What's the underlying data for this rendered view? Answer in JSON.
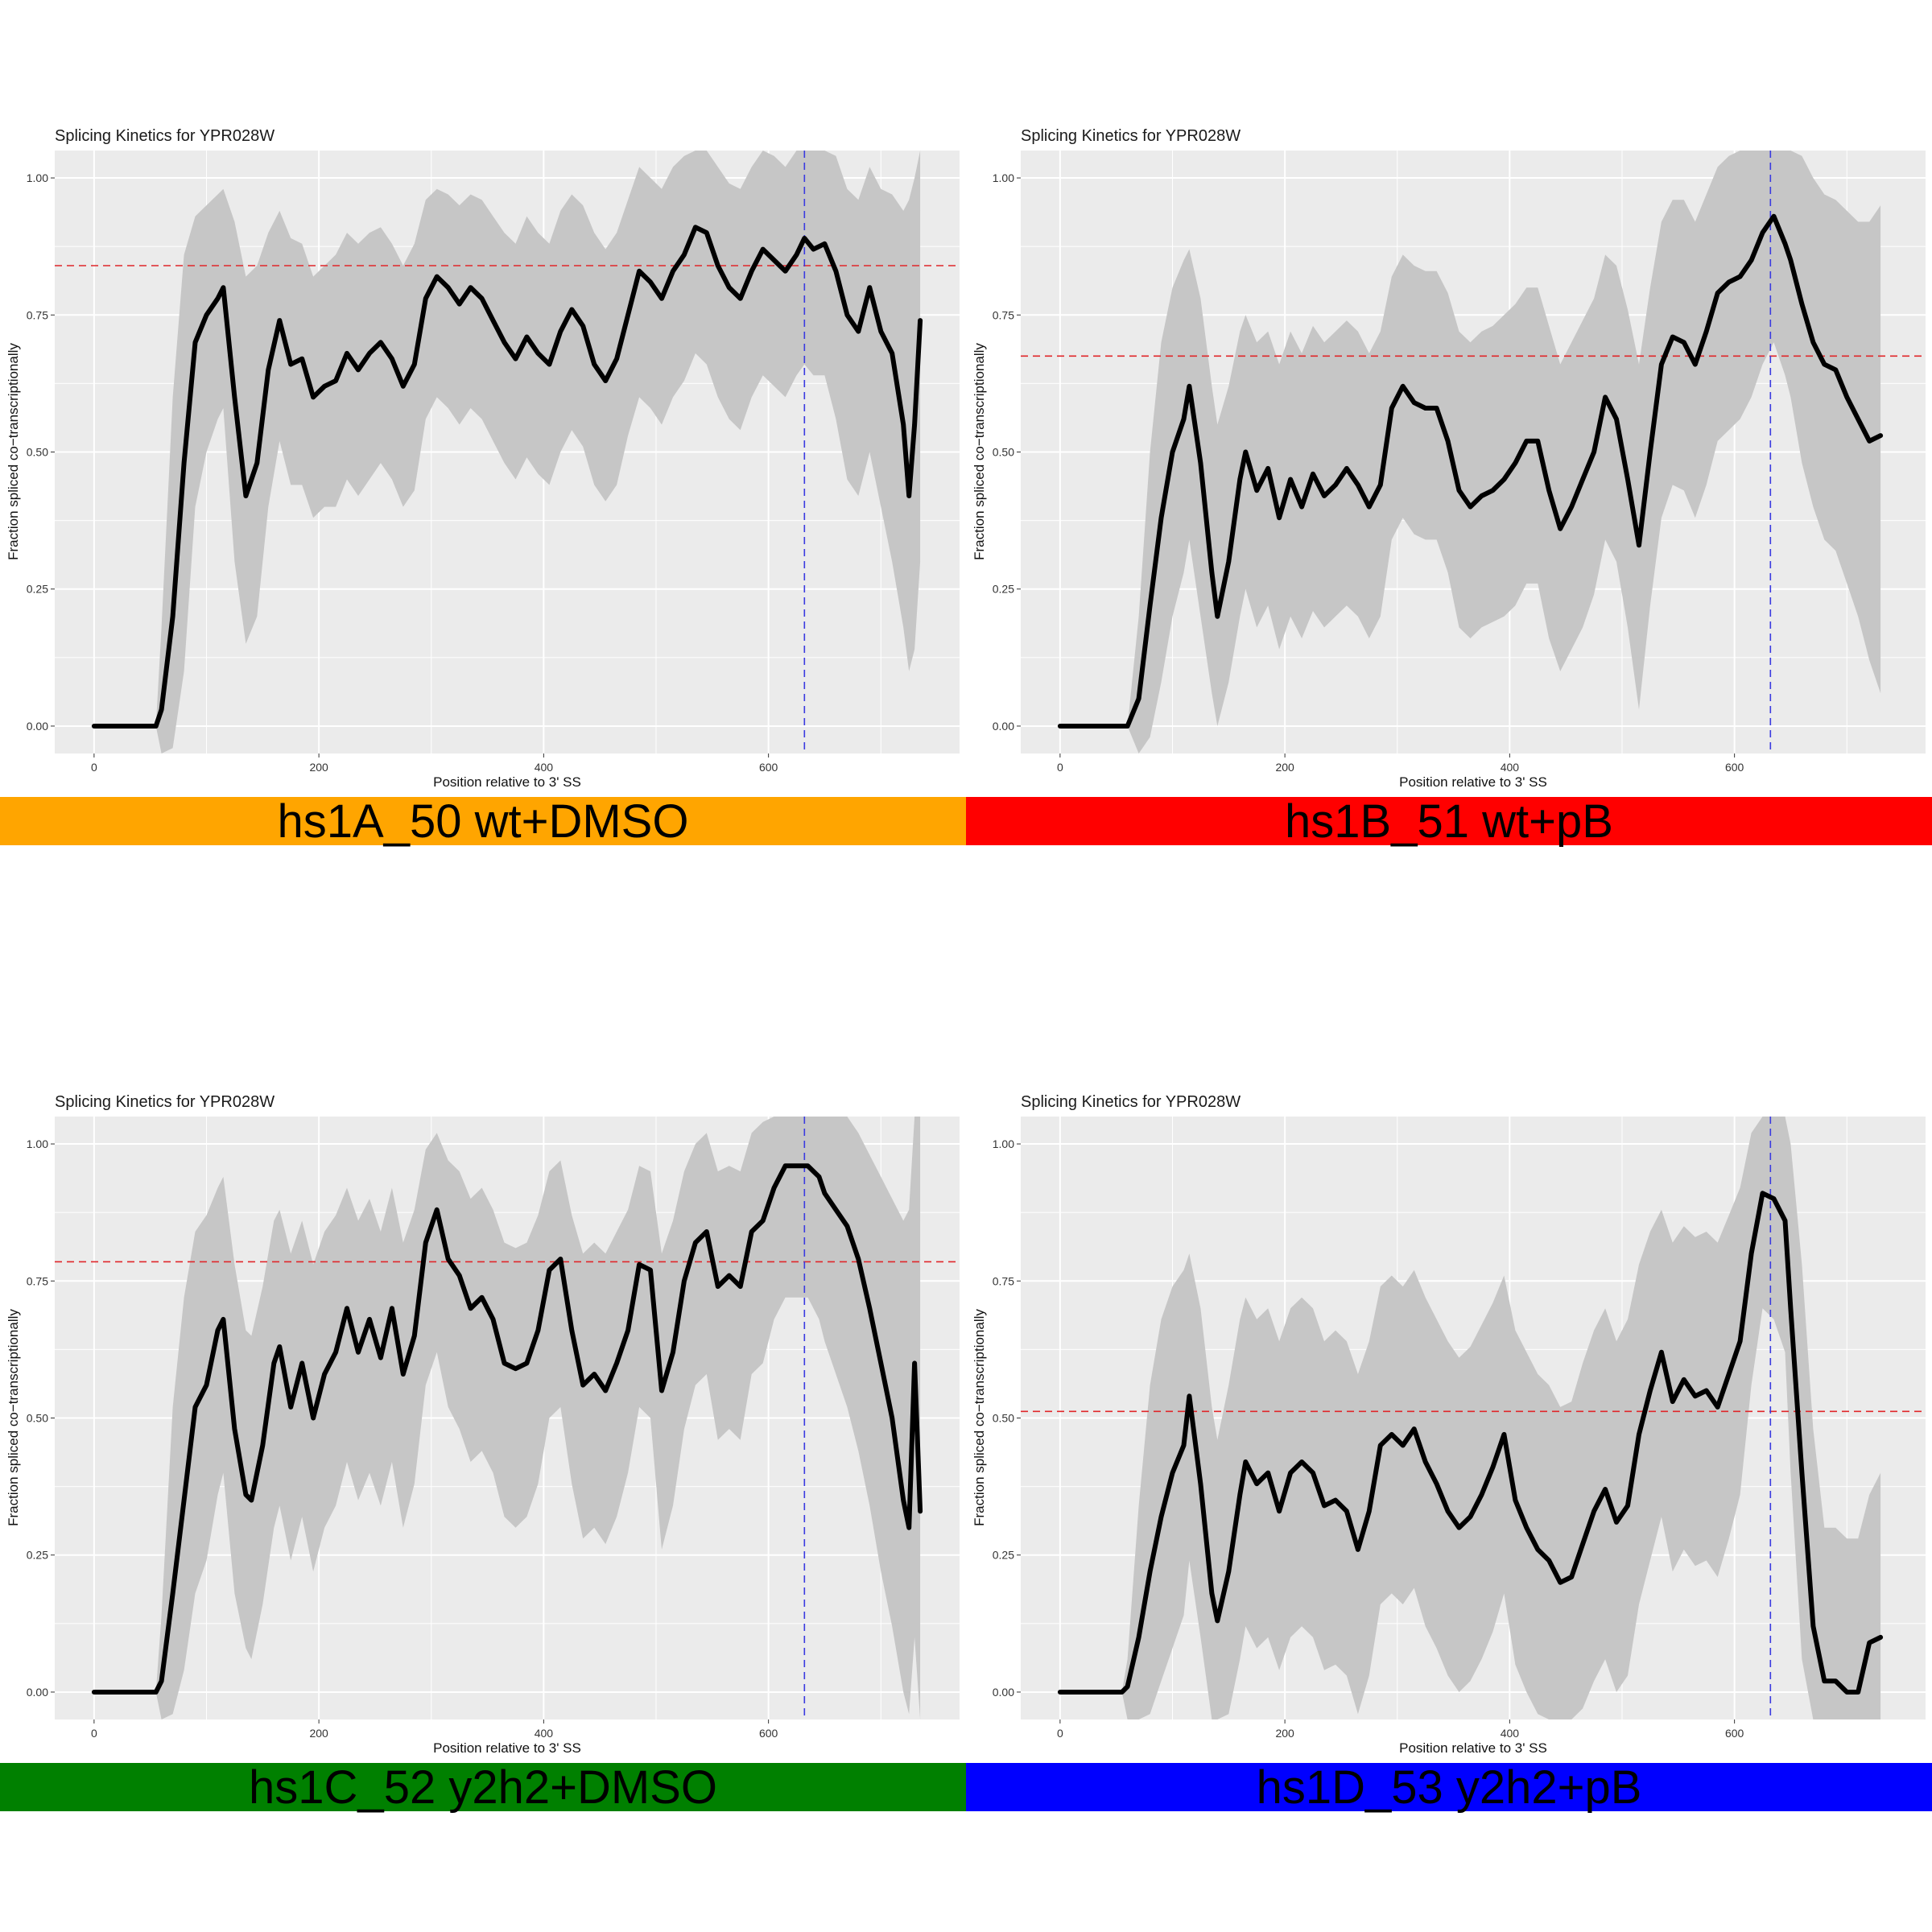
{
  "chart_data": [
    {
      "type": "line",
      "title": "Splicing Kinetics for YPR028W",
      "xlabel": "Position relative to 3' SS",
      "ylabel": "Fraction spliced co−transcriptionally",
      "xlim": [
        -35,
        770
      ],
      "ylim": [
        -0.05,
        1.05
      ],
      "xticks": [
        0,
        200,
        400,
        600
      ],
      "yticks": [
        0.0,
        0.25,
        0.5,
        0.75,
        1.0
      ],
      "ytick_labels": [
        "0.00",
        "0.25",
        "0.50",
        "0.75",
        "1.00"
      ],
      "grid": true,
      "hline_mean": 0.84,
      "vline_x": 632,
      "label": "hs1A_50 wt+DMSO",
      "label_color": "#FFA500",
      "x": [
        0,
        55,
        60,
        70,
        80,
        90,
        100,
        110,
        115,
        125,
        135,
        145,
        155,
        165,
        175,
        185,
        195,
        205,
        215,
        225,
        235,
        245,
        255,
        265,
        275,
        285,
        295,
        305,
        315,
        325,
        335,
        345,
        355,
        365,
        375,
        385,
        395,
        405,
        415,
        425,
        435,
        445,
        455,
        465,
        475,
        485,
        495,
        505,
        515,
        525,
        535,
        545,
        555,
        565,
        575,
        585,
        595,
        605,
        615,
        625,
        632,
        640,
        650,
        660,
        670,
        680,
        690,
        700,
        710,
        720,
        725,
        730,
        735
      ],
      "y": [
        0.0,
        0.0,
        0.03,
        0.2,
        0.48,
        0.7,
        0.75,
        0.78,
        0.8,
        0.6,
        0.42,
        0.48,
        0.65,
        0.74,
        0.66,
        0.67,
        0.6,
        0.62,
        0.63,
        0.68,
        0.65,
        0.68,
        0.7,
        0.67,
        0.62,
        0.66,
        0.78,
        0.82,
        0.8,
        0.77,
        0.8,
        0.78,
        0.74,
        0.7,
        0.67,
        0.71,
        0.68,
        0.66,
        0.72,
        0.76,
        0.73,
        0.66,
        0.63,
        0.67,
        0.75,
        0.83,
        0.81,
        0.78,
        0.83,
        0.86,
        0.91,
        0.9,
        0.84,
        0.8,
        0.78,
        0.83,
        0.87,
        0.85,
        0.83,
        0.86,
        0.89,
        0.87,
        0.88,
        0.83,
        0.75,
        0.72,
        0.8,
        0.72,
        0.68,
        0.55,
        0.42,
        0.55,
        0.74
      ],
      "upper": [
        0.0,
        0.0,
        0.18,
        0.6,
        0.86,
        0.93,
        0.95,
        0.97,
        0.98,
        0.92,
        0.82,
        0.84,
        0.9,
        0.94,
        0.89,
        0.88,
        0.82,
        0.84,
        0.86,
        0.9,
        0.88,
        0.9,
        0.91,
        0.88,
        0.84,
        0.88,
        0.96,
        0.98,
        0.97,
        0.95,
        0.97,
        0.96,
        0.93,
        0.9,
        0.88,
        0.93,
        0.9,
        0.88,
        0.94,
        0.97,
        0.95,
        0.9,
        0.87,
        0.9,
        0.96,
        1.02,
        1.0,
        0.98,
        1.02,
        1.04,
        1.06,
        1.06,
        1.02,
        0.99,
        0.98,
        1.02,
        1.05,
        1.04,
        1.02,
        1.05,
        1.06,
        1.06,
        1.06,
        1.04,
        0.98,
        0.96,
        1.02,
        0.98,
        0.97,
        0.94,
        0.96,
        1.0,
        1.06
      ],
      "lower": [
        0.0,
        0.0,
        -0.06,
        -0.04,
        0.1,
        0.4,
        0.5,
        0.56,
        0.58,
        0.3,
        0.15,
        0.2,
        0.4,
        0.52,
        0.44,
        0.44,
        0.38,
        0.4,
        0.4,
        0.45,
        0.42,
        0.45,
        0.48,
        0.45,
        0.4,
        0.43,
        0.56,
        0.6,
        0.58,
        0.55,
        0.58,
        0.56,
        0.52,
        0.48,
        0.45,
        0.49,
        0.46,
        0.44,
        0.5,
        0.54,
        0.51,
        0.44,
        0.41,
        0.44,
        0.53,
        0.6,
        0.58,
        0.55,
        0.6,
        0.63,
        0.68,
        0.66,
        0.6,
        0.56,
        0.54,
        0.6,
        0.64,
        0.62,
        0.6,
        0.64,
        0.66,
        0.64,
        0.64,
        0.56,
        0.45,
        0.42,
        0.5,
        0.4,
        0.3,
        0.18,
        0.1,
        0.14,
        0.3
      ]
    },
    {
      "type": "line",
      "title": "Splicing Kinetics for YPR028W",
      "xlabel": "Position relative to 3' SS",
      "ylabel": "Fraction spliced co−transcriptionally",
      "xlim": [
        -35,
        770
      ],
      "ylim": [
        -0.05,
        1.05
      ],
      "xticks": [
        0,
        200,
        400,
        600
      ],
      "yticks": [
        0.0,
        0.25,
        0.5,
        0.75,
        1.0
      ],
      "ytick_labels": [
        "0.00",
        "0.25",
        "0.50",
        "0.75",
        "1.00"
      ],
      "grid": true,
      "hline_mean": 0.675,
      "vline_x": 632,
      "label": "hs1B_51 wt+pB",
      "label_color": "#FF0000",
      "x": [
        0,
        60,
        70,
        80,
        90,
        100,
        110,
        115,
        125,
        135,
        140,
        150,
        160,
        165,
        175,
        185,
        195,
        205,
        215,
        225,
        235,
        245,
        255,
        265,
        275,
        285,
        295,
        305,
        315,
        325,
        335,
        345,
        355,
        365,
        375,
        385,
        395,
        405,
        415,
        425,
        435,
        445,
        455,
        465,
        475,
        485,
        495,
        505,
        515,
        525,
        535,
        545,
        555,
        565,
        575,
        585,
        595,
        605,
        615,
        625,
        635,
        645,
        650,
        660,
        670,
        680,
        690,
        700,
        710,
        720,
        730
      ],
      "y": [
        0.0,
        0.0,
        0.05,
        0.22,
        0.38,
        0.5,
        0.56,
        0.62,
        0.48,
        0.28,
        0.2,
        0.3,
        0.45,
        0.5,
        0.43,
        0.47,
        0.38,
        0.45,
        0.4,
        0.46,
        0.42,
        0.44,
        0.47,
        0.44,
        0.4,
        0.44,
        0.58,
        0.62,
        0.59,
        0.58,
        0.58,
        0.52,
        0.43,
        0.4,
        0.42,
        0.43,
        0.45,
        0.48,
        0.52,
        0.52,
        0.43,
        0.36,
        0.4,
        0.45,
        0.5,
        0.6,
        0.56,
        0.45,
        0.33,
        0.5,
        0.66,
        0.71,
        0.7,
        0.66,
        0.72,
        0.79,
        0.81,
        0.82,
        0.85,
        0.9,
        0.93,
        0.88,
        0.85,
        0.77,
        0.7,
        0.66,
        0.65,
        0.6,
        0.56,
        0.52,
        0.53
      ],
      "upper": [
        0.0,
        0.0,
        0.2,
        0.5,
        0.7,
        0.8,
        0.85,
        0.87,
        0.78,
        0.62,
        0.55,
        0.62,
        0.72,
        0.75,
        0.7,
        0.72,
        0.66,
        0.72,
        0.68,
        0.73,
        0.7,
        0.72,
        0.74,
        0.72,
        0.68,
        0.72,
        0.82,
        0.86,
        0.84,
        0.83,
        0.83,
        0.79,
        0.72,
        0.7,
        0.72,
        0.73,
        0.75,
        0.77,
        0.8,
        0.8,
        0.73,
        0.66,
        0.7,
        0.74,
        0.78,
        0.86,
        0.84,
        0.76,
        0.66,
        0.8,
        0.92,
        0.96,
        0.96,
        0.92,
        0.97,
        1.02,
        1.04,
        1.05,
        1.06,
        1.06,
        1.06,
        1.06,
        1.06,
        1.04,
        1.0,
        0.97,
        0.96,
        0.94,
        0.92,
        0.92,
        0.95
      ],
      "lower": [
        0.0,
        0.0,
        -0.06,
        -0.02,
        0.08,
        0.2,
        0.28,
        0.34,
        0.2,
        0.06,
        0.0,
        0.08,
        0.2,
        0.25,
        0.18,
        0.22,
        0.14,
        0.2,
        0.16,
        0.21,
        0.18,
        0.2,
        0.22,
        0.2,
        0.16,
        0.2,
        0.34,
        0.38,
        0.35,
        0.34,
        0.34,
        0.28,
        0.18,
        0.16,
        0.18,
        0.19,
        0.2,
        0.22,
        0.26,
        0.26,
        0.16,
        0.1,
        0.14,
        0.18,
        0.24,
        0.34,
        0.3,
        0.18,
        0.03,
        0.22,
        0.38,
        0.44,
        0.43,
        0.38,
        0.44,
        0.52,
        0.54,
        0.56,
        0.6,
        0.66,
        0.7,
        0.64,
        0.6,
        0.48,
        0.4,
        0.34,
        0.32,
        0.26,
        0.2,
        0.12,
        0.06
      ]
    },
    {
      "type": "line",
      "title": "Splicing Kinetics for YPR028W",
      "xlabel": "Position relative to 3' SS",
      "ylabel": "Fraction spliced co−transcriptionally",
      "xlim": [
        -35,
        770
      ],
      "ylim": [
        -0.05,
        1.05
      ],
      "xticks": [
        0,
        200,
        400,
        600
      ],
      "yticks": [
        0.0,
        0.25,
        0.5,
        0.75,
        1.0
      ],
      "ytick_labels": [
        "0.00",
        "0.25",
        "0.50",
        "0.75",
        "1.00"
      ],
      "grid": true,
      "hline_mean": 0.785,
      "vline_x": 632,
      "label": "hs1C_52 y2h2+DMSO",
      "label_color": "#008000",
      "x": [
        0,
        55,
        60,
        70,
        80,
        90,
        100,
        110,
        115,
        125,
        135,
        140,
        150,
        160,
        165,
        175,
        185,
        195,
        205,
        215,
        225,
        235,
        245,
        255,
        265,
        275,
        285,
        295,
        305,
        315,
        325,
        335,
        345,
        355,
        365,
        375,
        385,
        395,
        405,
        415,
        425,
        435,
        445,
        455,
        465,
        475,
        485,
        495,
        505,
        515,
        525,
        535,
        545,
        555,
        565,
        575,
        585,
        595,
        605,
        615,
        625,
        635,
        645,
        650,
        660,
        670,
        680,
        690,
        700,
        710,
        720,
        725,
        730,
        735
      ],
      "y": [
        0.0,
        0.0,
        0.02,
        0.18,
        0.35,
        0.52,
        0.56,
        0.66,
        0.68,
        0.48,
        0.36,
        0.35,
        0.45,
        0.6,
        0.63,
        0.52,
        0.6,
        0.5,
        0.58,
        0.62,
        0.7,
        0.62,
        0.68,
        0.61,
        0.7,
        0.58,
        0.65,
        0.82,
        0.88,
        0.79,
        0.76,
        0.7,
        0.72,
        0.68,
        0.6,
        0.59,
        0.6,
        0.66,
        0.77,
        0.79,
        0.66,
        0.56,
        0.58,
        0.55,
        0.6,
        0.66,
        0.78,
        0.77,
        0.55,
        0.62,
        0.75,
        0.82,
        0.84,
        0.74,
        0.76,
        0.74,
        0.84,
        0.86,
        0.92,
        0.96,
        0.96,
        0.96,
        0.94,
        0.91,
        0.88,
        0.85,
        0.79,
        0.7,
        0.6,
        0.5,
        0.35,
        0.3,
        0.6,
        0.33
      ],
      "upper": [
        0.0,
        0.0,
        0.14,
        0.52,
        0.72,
        0.84,
        0.87,
        0.92,
        0.94,
        0.78,
        0.66,
        0.65,
        0.74,
        0.86,
        0.88,
        0.8,
        0.86,
        0.78,
        0.84,
        0.87,
        0.92,
        0.86,
        0.9,
        0.84,
        0.92,
        0.82,
        0.88,
        0.99,
        1.02,
        0.97,
        0.95,
        0.9,
        0.92,
        0.88,
        0.82,
        0.81,
        0.82,
        0.87,
        0.95,
        0.97,
        0.87,
        0.8,
        0.82,
        0.8,
        0.84,
        0.88,
        0.96,
        0.95,
        0.8,
        0.86,
        0.95,
        1.0,
        1.02,
        0.95,
        0.96,
        0.95,
        1.02,
        1.04,
        1.06,
        1.06,
        1.06,
        1.06,
        1.06,
        1.06,
        1.06,
        1.05,
        1.02,
        0.98,
        0.94,
        0.9,
        0.86,
        0.88,
        1.06,
        1.06
      ],
      "lower": [
        0.0,
        0.0,
        -0.06,
        -0.04,
        0.04,
        0.18,
        0.24,
        0.36,
        0.4,
        0.18,
        0.08,
        0.06,
        0.16,
        0.3,
        0.34,
        0.24,
        0.32,
        0.22,
        0.3,
        0.34,
        0.42,
        0.35,
        0.4,
        0.34,
        0.42,
        0.3,
        0.38,
        0.56,
        0.62,
        0.52,
        0.48,
        0.42,
        0.44,
        0.4,
        0.32,
        0.3,
        0.32,
        0.38,
        0.5,
        0.52,
        0.38,
        0.28,
        0.3,
        0.27,
        0.32,
        0.4,
        0.52,
        0.5,
        0.26,
        0.34,
        0.48,
        0.56,
        0.58,
        0.46,
        0.48,
        0.46,
        0.58,
        0.6,
        0.68,
        0.72,
        0.72,
        0.72,
        0.68,
        0.64,
        0.58,
        0.52,
        0.44,
        0.34,
        0.22,
        0.12,
        0.0,
        -0.04,
        0.1,
        -0.06
      ]
    },
    {
      "type": "line",
      "title": "Splicing Kinetics for YPR028W",
      "xlabel": "Position relative to 3' SS",
      "ylabel": "Fraction spliced co−transcriptionally",
      "xlim": [
        -35,
        770
      ],
      "ylim": [
        -0.05,
        1.05
      ],
      "xticks": [
        0,
        200,
        400,
        600
      ],
      "yticks": [
        0.0,
        0.25,
        0.5,
        0.75,
        1.0
      ],
      "ytick_labels": [
        "0.00",
        "0.25",
        "0.50",
        "0.75",
        "1.00"
      ],
      "grid": true,
      "hline_mean": 0.512,
      "vline_x": 632,
      "label": "hs1D_53 y2h2+pB",
      "label_color": "#0000FF",
      "x": [
        0,
        55,
        60,
        70,
        80,
        90,
        100,
        110,
        115,
        125,
        135,
        140,
        150,
        160,
        165,
        175,
        185,
        195,
        205,
        215,
        225,
        235,
        245,
        255,
        265,
        275,
        285,
        295,
        305,
        315,
        325,
        335,
        345,
        355,
        365,
        375,
        385,
        395,
        405,
        415,
        425,
        435,
        445,
        455,
        465,
        475,
        485,
        495,
        505,
        515,
        525,
        535,
        545,
        555,
        565,
        575,
        585,
        595,
        605,
        615,
        625,
        635,
        645,
        650,
        660,
        670,
        680,
        690,
        700,
        710,
        720,
        730
      ],
      "y": [
        0.0,
        0.0,
        0.01,
        0.1,
        0.22,
        0.32,
        0.4,
        0.45,
        0.54,
        0.38,
        0.18,
        0.13,
        0.22,
        0.36,
        0.42,
        0.38,
        0.4,
        0.33,
        0.4,
        0.42,
        0.4,
        0.34,
        0.35,
        0.33,
        0.26,
        0.33,
        0.45,
        0.47,
        0.45,
        0.48,
        0.42,
        0.38,
        0.33,
        0.3,
        0.32,
        0.36,
        0.41,
        0.47,
        0.35,
        0.3,
        0.26,
        0.24,
        0.2,
        0.21,
        0.27,
        0.33,
        0.37,
        0.31,
        0.34,
        0.47,
        0.55,
        0.62,
        0.53,
        0.57,
        0.54,
        0.55,
        0.52,
        0.58,
        0.64,
        0.8,
        0.91,
        0.9,
        0.86,
        0.7,
        0.4,
        0.12,
        0.02,
        0.02,
        0.0,
        0.0,
        0.09,
        0.1
      ],
      "upper": [
        0.0,
        0.0,
        0.06,
        0.34,
        0.56,
        0.68,
        0.74,
        0.77,
        0.8,
        0.7,
        0.52,
        0.46,
        0.56,
        0.68,
        0.72,
        0.68,
        0.7,
        0.64,
        0.7,
        0.72,
        0.7,
        0.64,
        0.66,
        0.64,
        0.58,
        0.64,
        0.74,
        0.76,
        0.74,
        0.77,
        0.72,
        0.68,
        0.64,
        0.61,
        0.63,
        0.67,
        0.71,
        0.76,
        0.66,
        0.62,
        0.58,
        0.56,
        0.52,
        0.53,
        0.6,
        0.66,
        0.7,
        0.64,
        0.68,
        0.78,
        0.84,
        0.88,
        0.82,
        0.85,
        0.83,
        0.84,
        0.82,
        0.87,
        0.92,
        1.02,
        1.06,
        1.06,
        1.06,
        1.0,
        0.78,
        0.48,
        0.3,
        0.3,
        0.28,
        0.28,
        0.36,
        0.4
      ],
      "lower": [
        0.0,
        0.0,
        -0.06,
        -0.06,
        -0.04,
        0.02,
        0.08,
        0.14,
        0.24,
        0.1,
        -0.06,
        -0.06,
        -0.04,
        0.06,
        0.12,
        0.08,
        0.1,
        0.04,
        0.1,
        0.12,
        0.1,
        0.04,
        0.05,
        0.03,
        -0.04,
        0.03,
        0.16,
        0.18,
        0.16,
        0.19,
        0.12,
        0.08,
        0.03,
        0.0,
        0.02,
        0.06,
        0.11,
        0.18,
        0.05,
        0.0,
        -0.04,
        -0.06,
        -0.06,
        -0.06,
        -0.03,
        0.02,
        0.06,
        0.0,
        0.03,
        0.16,
        0.24,
        0.32,
        0.22,
        0.26,
        0.23,
        0.24,
        0.21,
        0.28,
        0.36,
        0.56,
        0.7,
        0.68,
        0.62,
        0.4,
        0.06,
        -0.06,
        -0.06,
        -0.06,
        -0.06,
        -0.06,
        -0.06,
        -0.06
      ]
    }
  ]
}
